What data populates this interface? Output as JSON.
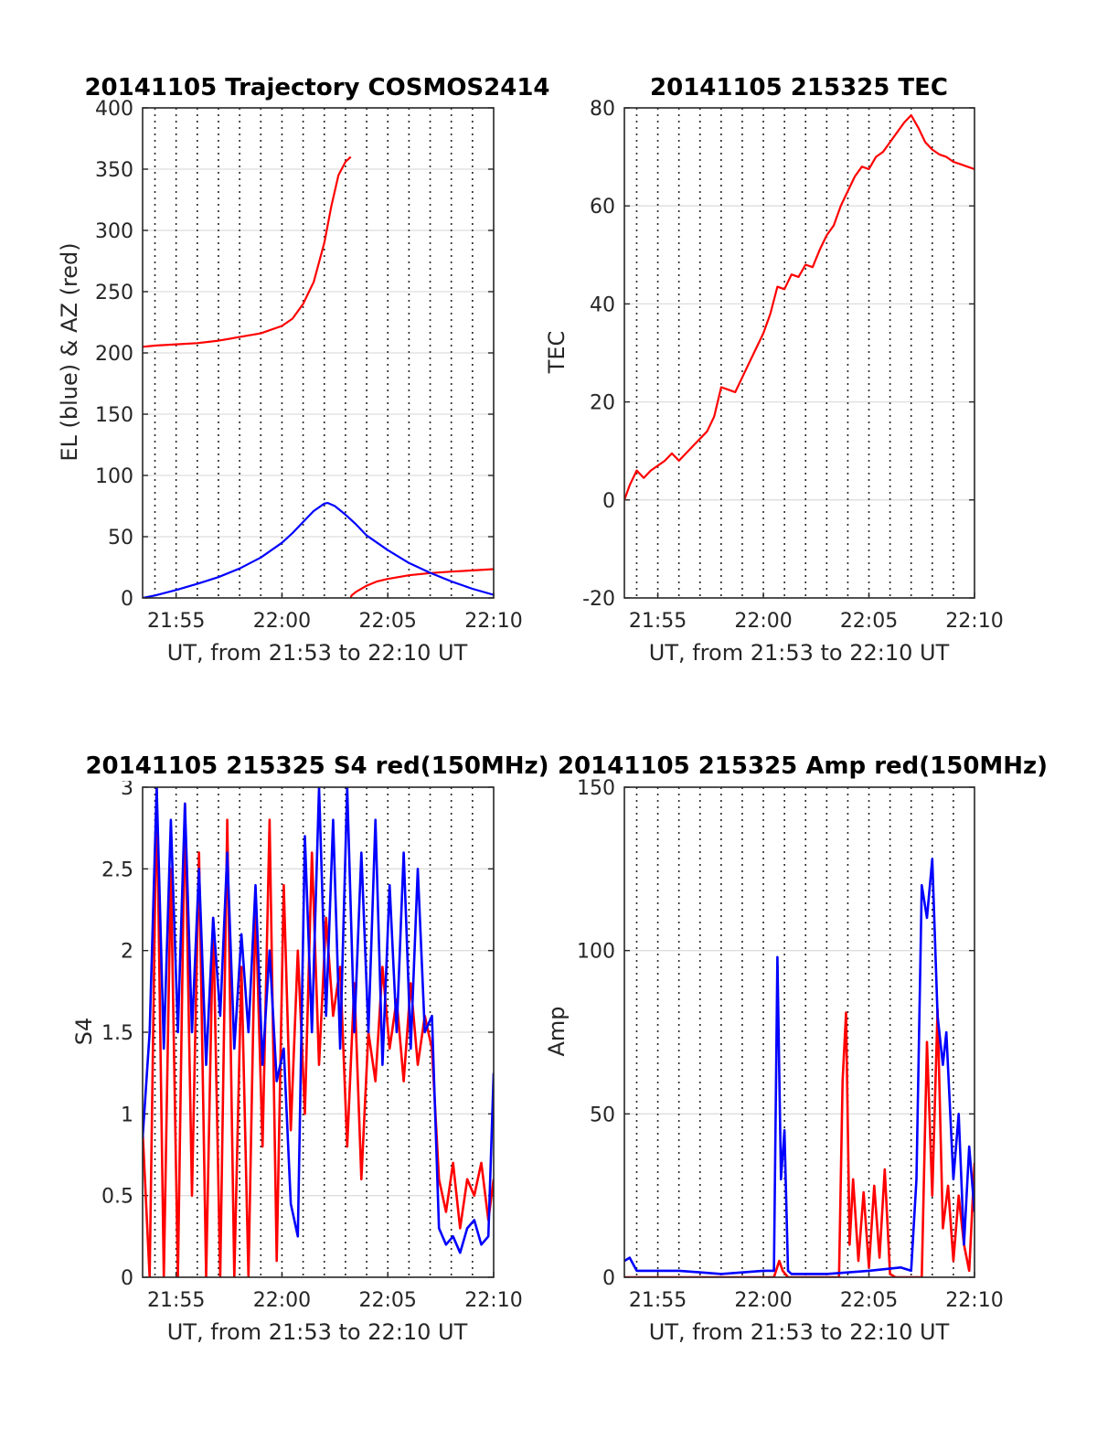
{
  "chart_data": [
    {
      "id": "trajectory",
      "type": "line",
      "title": "20141105 Trajectory COSMOS2414",
      "xlabel": "UT, from 21:53 to 22:10 UT",
      "ylabel": "EL (blue) & AZ (red)",
      "xlim": [
        "21:53:25",
        "22:10:00"
      ],
      "ylim": [
        0,
        400
      ],
      "yticks": [
        0,
        50,
        100,
        150,
        200,
        250,
        300,
        350,
        400
      ],
      "xticks": [
        "21:55",
        "22:00",
        "22:05",
        "22:10"
      ],
      "x_grid_minutes": [
        54,
        55,
        56,
        57,
        58,
        59,
        60,
        61,
        62,
        63,
        64,
        65,
        66,
        67,
        68,
        69
      ],
      "grid": true,
      "series": [
        {
          "color": "#ff0000",
          "x": [
            "21:53:25",
            "21:54:00",
            "21:55:00",
            "21:56:00",
            "21:57:00",
            "21:58:00",
            "21:59:00",
            "22:00:00",
            "22:00:30",
            "22:01:00",
            "22:01:30",
            "22:02:00",
            "22:02:20",
            "22:02:40",
            "22:03:00",
            "22:03:15"
          ],
          "y": [
            205,
            206,
            207,
            208,
            210,
            213,
            216,
            222,
            228,
            240,
            258,
            290,
            320,
            345,
            356,
            360
          ]
        },
        {
          "color": "#ff0000",
          "x": [
            "22:03:15",
            "22:03:17",
            "22:03:30",
            "22:04:00",
            "22:04:30",
            "22:05:00",
            "22:06:00",
            "22:07:00",
            "22:08:00",
            "22:09:00",
            "22:10:00"
          ],
          "y": [
            0,
            2,
            5,
            10,
            13.5,
            15.5,
            18.5,
            20.3,
            21.5,
            22.5,
            23.5
          ]
        },
        {
          "color": "#0000ff",
          "x": [
            "21:53:25",
            "21:54:00",
            "21:55:00",
            "21:56:00",
            "21:57:00",
            "21:58:00",
            "21:59:00",
            "22:00:00",
            "22:00:30",
            "22:01:00",
            "22:01:30",
            "22:02:00",
            "22:02:10",
            "22:02:30",
            "22:03:00",
            "22:03:30",
            "22:04:00",
            "22:05:00",
            "22:06:00",
            "22:07:00",
            "22:08:00",
            "22:09:00",
            "22:10:00"
          ],
          "y": [
            0,
            2,
            6.5,
            11.5,
            17,
            24,
            33,
            45,
            53,
            62,
            71,
            77,
            77.5,
            75,
            68,
            60,
            51,
            39,
            28.5,
            20.5,
            13.5,
            7.5,
            2.5
          ]
        }
      ]
    },
    {
      "id": "tec",
      "type": "line",
      "title": "20141105 215325 TEC",
      "xlabel": "UT, from 21:53 to 22:10 UT",
      "ylabel": "TEC",
      "xlim": [
        "21:53:25",
        "22:10:00"
      ],
      "ylim": [
        -20,
        80
      ],
      "yticks": [
        -20,
        0,
        20,
        40,
        60,
        80
      ],
      "xticks": [
        "21:55",
        "22:00",
        "22:05",
        "22:10"
      ],
      "x_grid_minutes": [
        54,
        55,
        56,
        57,
        58,
        59,
        60,
        61,
        62,
        63,
        64,
        65,
        66,
        67,
        68,
        69
      ],
      "grid": true,
      "series": [
        {
          "color": "#ff0000",
          "x": [
            "21:53:25",
            "21:53:40",
            "21:54:00",
            "21:54:20",
            "21:54:40",
            "21:55:00",
            "21:55:20",
            "21:55:40",
            "21:56:00",
            "21:56:20",
            "21:56:40",
            "21:57:00",
            "21:57:20",
            "21:57:40",
            "21:58:00",
            "21:58:20",
            "21:58:40",
            "21:59:00",
            "21:59:20",
            "21:59:40",
            "22:00:00",
            "22:00:20",
            "22:00:40",
            "22:01:00",
            "22:01:20",
            "22:01:40",
            "22:02:00",
            "22:02:20",
            "22:02:40",
            "22:03:00",
            "22:03:20",
            "22:03:40",
            "22:04:00",
            "22:04:20",
            "22:04:40",
            "22:05:00",
            "22:05:20",
            "22:05:40",
            "22:06:00",
            "22:06:20",
            "22:06:40",
            "22:07:00",
            "22:07:20",
            "22:07:40",
            "22:08:00",
            "22:08:20",
            "22:08:40",
            "22:09:00",
            "22:09:20",
            "22:09:40",
            "22:10:00"
          ],
          "y": [
            0,
            3,
            6,
            4.5,
            6,
            7,
            8,
            9.5,
            8,
            9.5,
            11,
            12.5,
            14,
            17,
            23,
            22.5,
            22,
            25,
            28,
            31,
            34,
            38,
            43.5,
            43,
            46,
            45.5,
            48,
            47.5,
            51,
            54,
            56,
            60,
            63,
            66,
            68,
            67.5,
            70,
            71,
            73,
            75,
            77,
            78.5,
            76,
            73,
            71.5,
            70.5,
            70,
            69,
            68.5,
            68,
            67.5
          ]
        }
      ]
    },
    {
      "id": "s4",
      "type": "line",
      "title": "20141105 215325 S4 red(150MHz)",
      "xlabel": "UT, from 21:53 to 22:10 UT",
      "ylabel": "S4",
      "xlim": [
        "21:53:25",
        "22:10:00"
      ],
      "ylim": [
        0,
        3
      ],
      "yticks": [
        0,
        0.5,
        1,
        1.5,
        2,
        2.5,
        3
      ],
      "xticks": [
        "21:55",
        "22:00",
        "22:05",
        "22:10"
      ],
      "x_grid_minutes": [
        54,
        55,
        56,
        57,
        58,
        59,
        60,
        61,
        62,
        63,
        64,
        65,
        66,
        67,
        68,
        69
      ],
      "grid": true,
      "series": [
        {
          "color": "#ff0000",
          "x": [
            "21:53:25",
            "21:53:45",
            "21:54:05",
            "21:54:25",
            "21:54:45",
            "21:55:05",
            "21:55:25",
            "21:55:45",
            "21:56:05",
            "21:56:25",
            "21:56:45",
            "21:57:05",
            "21:57:25",
            "21:57:45",
            "21:58:05",
            "21:58:25",
            "21:58:45",
            "21:59:05",
            "21:59:25",
            "21:59:45",
            "22:00:05",
            "22:00:25",
            "22:00:45",
            "22:01:05",
            "22:01:25",
            "22:01:45",
            "22:02:05",
            "22:02:25",
            "22:02:45",
            "22:03:05",
            "22:03:25",
            "22:03:45",
            "22:04:05",
            "22:04:25",
            "22:04:45",
            "22:05:05",
            "22:05:25",
            "22:05:45",
            "22:06:05",
            "22:06:25",
            "22:06:45",
            "22:07:05",
            "22:07:25",
            "22:07:45",
            "22:08:05",
            "22:08:25",
            "22:08:45",
            "22:09:05",
            "22:09:25",
            "22:09:45",
            "22:10:00"
          ],
          "y": [
            0.9,
            0,
            3,
            0,
            2.5,
            0,
            2.9,
            0.5,
            2.6,
            0,
            2.2,
            0,
            2.8,
            0,
            1.9,
            0,
            2.3,
            0.8,
            2.8,
            0.1,
            2.4,
            0.9,
            2.0,
            1.0,
            2.6,
            1.3,
            2.2,
            1.6,
            1.9,
            0.8,
            1.8,
            0.6,
            1.5,
            1.2,
            1.9,
            1.4,
            1.7,
            1.2,
            1.8,
            1.3,
            1.6,
            1.4,
            0.6,
            0.4,
            0.7,
            0.3,
            0.6,
            0.5,
            0.7,
            0.35,
            0.6
          ]
        },
        {
          "color": "#0000ff",
          "x": [
            "21:53:25",
            "21:53:45",
            "21:54:05",
            "21:54:25",
            "21:54:45",
            "21:55:05",
            "21:55:25",
            "21:55:45",
            "21:56:05",
            "21:56:25",
            "21:56:45",
            "21:57:05",
            "21:57:25",
            "21:57:45",
            "21:58:05",
            "21:58:25",
            "21:58:45",
            "21:59:05",
            "21:59:25",
            "21:59:45",
            "22:00:05",
            "22:00:25",
            "22:00:45",
            "22:01:05",
            "22:01:25",
            "22:01:45",
            "22:02:05",
            "22:02:25",
            "22:02:45",
            "22:03:05",
            "22:03:25",
            "22:03:45",
            "22:04:05",
            "22:04:25",
            "22:04:45",
            "22:05:05",
            "22:05:25",
            "22:05:45",
            "22:06:05",
            "22:06:25",
            "22:06:45",
            "22:07:05",
            "22:07:25",
            "22:07:45",
            "22:08:05",
            "22:08:25",
            "22:08:45",
            "22:09:05",
            "22:09:25",
            "22:09:45",
            "22:10:00"
          ],
          "y": [
            0.85,
            1.5,
            3,
            1.4,
            2.8,
            1.5,
            2.9,
            1.5,
            2.5,
            1.3,
            2.2,
            1.6,
            2.6,
            1.4,
            2.1,
            1.5,
            2.4,
            1.3,
            2.0,
            1.2,
            1.4,
            0.45,
            0.25,
            2.7,
            1.5,
            3,
            1.6,
            2.8,
            1.4,
            3,
            1.5,
            2.6,
            1.5,
            2.8,
            1.3,
            2.4,
            1.5,
            2.6,
            1.4,
            2.5,
            1.5,
            1.6,
            0.3,
            0.2,
            0.25,
            0.15,
            0.3,
            0.35,
            0.2,
            0.25,
            1.25
          ]
        }
      ]
    },
    {
      "id": "amp",
      "type": "line",
      "title": "20141105 215325 Amp red(150MHz)",
      "xlabel": "UT, from 21:53 to 22:10 UT",
      "ylabel": "Amp",
      "xlim": [
        "21:53:25",
        "22:10:00"
      ],
      "ylim": [
        0,
        150
      ],
      "yticks": [
        0,
        50,
        100,
        150
      ],
      "xticks": [
        "21:55",
        "22:00",
        "22:05",
        "22:10"
      ],
      "x_grid_minutes": [
        54,
        55,
        56,
        57,
        58,
        59,
        60,
        61,
        62,
        63,
        64,
        65,
        66,
        67,
        68,
        69
      ],
      "grid": true,
      "series": [
        {
          "color": "#ff0000",
          "x": [
            "21:53:25",
            "22:00:30",
            "22:00:45",
            "22:00:55",
            "22:01:10",
            "22:03:35",
            "22:03:45",
            "22:03:55",
            "22:04:05",
            "22:04:15",
            "22:04:30",
            "22:04:45",
            "22:05:00",
            "22:05:15",
            "22:05:30",
            "22:05:45",
            "22:06:00",
            "22:06:15",
            "22:07:30",
            "22:07:45",
            "22:08:00",
            "22:08:15",
            "22:08:30",
            "22:08:45",
            "22:09:00",
            "22:09:15",
            "22:09:30",
            "22:09:45",
            "22:10:00"
          ],
          "y": [
            0,
            0,
            5,
            2,
            0,
            0,
            60,
            81,
            10,
            30,
            5,
            26,
            3,
            28,
            6,
            33,
            1,
            0,
            0,
            72,
            25,
            82,
            15,
            28,
            5,
            25,
            10,
            2,
            35
          ]
        },
        {
          "color": "#0000ff",
          "x": [
            "21:53:25",
            "21:53:40",
            "21:54:00",
            "21:56:00",
            "21:58:00",
            "22:00:00",
            "22:00:30",
            "22:00:40",
            "22:00:50",
            "22:01:00",
            "22:01:10",
            "22:01:20",
            "22:01:40",
            "22:03:00",
            "22:05:00",
            "22:06:30",
            "22:07:00",
            "22:07:15",
            "22:07:30",
            "22:07:45",
            "22:08:00",
            "22:08:15",
            "22:08:30",
            "22:08:40",
            "22:09:00",
            "22:09:15",
            "22:09:30",
            "22:09:45",
            "22:10:00"
          ],
          "y": [
            5,
            6,
            2,
            2,
            1,
            2,
            2,
            98,
            30,
            45,
            2,
            1,
            1,
            1,
            2,
            3,
            2,
            30,
            120,
            110,
            128,
            80,
            65,
            75,
            30,
            50,
            10,
            40,
            20
          ]
        }
      ]
    }
  ]
}
